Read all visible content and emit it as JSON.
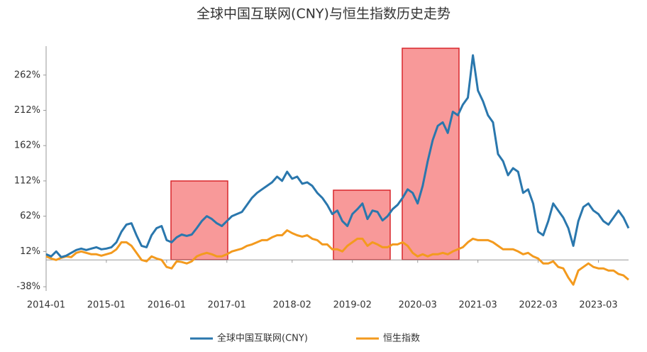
{
  "chart_data": {
    "type": "line",
    "title": "全球中国互联网(CNY)与恒生指数历史走势",
    "x": [
      "2014-01",
      "2014-02",
      "2014-03",
      "2014-04",
      "2014-05",
      "2014-06",
      "2014-07",
      "2014-08",
      "2014-09",
      "2014-10",
      "2014-11",
      "2014-12",
      "2015-01",
      "2015-02",
      "2015-03",
      "2015-04",
      "2015-05",
      "2015-06",
      "2015-07",
      "2015-08",
      "2015-09",
      "2015-10",
      "2015-11",
      "2015-12",
      "2016-01",
      "2016-02",
      "2016-03",
      "2016-04",
      "2016-05",
      "2016-06",
      "2016-07",
      "2016-08",
      "2016-09",
      "2016-10",
      "2016-11",
      "2016-12",
      "2017-01",
      "2017-02",
      "2017-03",
      "2017-04",
      "2017-05",
      "2017-06",
      "2017-07",
      "2017-08",
      "2017-09",
      "2017-10",
      "2017-11",
      "2017-12",
      "2018-01",
      "2018-02",
      "2018-03",
      "2018-04",
      "2018-05",
      "2018-06",
      "2018-07",
      "2018-08",
      "2018-09",
      "2018-10",
      "2018-11",
      "2018-12",
      "2019-01",
      "2019-02",
      "2019-03",
      "2019-04",
      "2019-05",
      "2019-06",
      "2019-07",
      "2019-08",
      "2019-09",
      "2019-10",
      "2019-11",
      "2019-12",
      "2020-01",
      "2020-02",
      "2020-03",
      "2020-04",
      "2020-05",
      "2020-06",
      "2020-07",
      "2020-08",
      "2020-09",
      "2020-10",
      "2020-11",
      "2020-12",
      "2021-01",
      "2021-02",
      "2021-03",
      "2021-04",
      "2021-05",
      "2021-06",
      "2021-07",
      "2021-08",
      "2021-09",
      "2021-10",
      "2021-11",
      "2021-12",
      "2022-01",
      "2022-02",
      "2022-03",
      "2022-04",
      "2022-05",
      "2022-06",
      "2022-07",
      "2022-08",
      "2022-09",
      "2022-10",
      "2022-11",
      "2022-12",
      "2023-01",
      "2023-02",
      "2023-03",
      "2023-04",
      "2023-05",
      "2023-06",
      "2023-07",
      "2023-08",
      "2023-09"
    ],
    "series": [
      {
        "name": "全球中国互联网(CNY)",
        "color": "#2a77ad",
        "values": [
          8,
          5,
          12,
          4,
          6,
          10,
          14,
          16,
          14,
          16,
          18,
          15,
          16,
          18,
          25,
          40,
          50,
          52,
          35,
          20,
          18,
          35,
          45,
          48,
          28,
          25,
          32,
          36,
          34,
          36,
          45,
          55,
          62,
          58,
          52,
          48,
          55,
          62,
          65,
          68,
          78,
          88,
          95,
          100,
          105,
          110,
          118,
          112,
          125,
          115,
          118,
          108,
          110,
          105,
          95,
          88,
          78,
          65,
          70,
          55,
          48,
          65,
          72,
          80,
          58,
          70,
          68,
          56,
          62,
          72,
          78,
          88,
          100,
          95,
          80,
          105,
          140,
          170,
          190,
          195,
          180,
          210,
          205,
          220,
          230,
          290,
          240,
          225,
          205,
          195,
          150,
          140,
          120,
          130,
          125,
          95,
          100,
          80,
          40,
          35,
          55,
          80,
          70,
          60,
          45,
          20,
          55,
          75,
          80,
          70,
          65,
          55,
          50,
          60,
          70,
          60,
          45
        ]
      },
      {
        "name": "恒生指数",
        "color": "#f39a1e",
        "values": [
          5,
          2,
          0,
          3,
          5,
          4,
          10,
          12,
          10,
          8,
          8,
          6,
          8,
          10,
          15,
          25,
          25,
          20,
          10,
          0,
          -2,
          5,
          2,
          0,
          -10,
          -12,
          -2,
          -3,
          -5,
          -2,
          5,
          8,
          10,
          8,
          5,
          5,
          8,
          12,
          14,
          16,
          20,
          22,
          25,
          28,
          28,
          32,
          35,
          35,
          42,
          38,
          35,
          33,
          35,
          30,
          28,
          22,
          22,
          15,
          15,
          12,
          20,
          25,
          30,
          30,
          20,
          25,
          22,
          18,
          18,
          22,
          22,
          25,
          20,
          10,
          5,
          8,
          5,
          8,
          8,
          10,
          8,
          12,
          15,
          18,
          25,
          30,
          28,
          28,
          28,
          25,
          20,
          15,
          15,
          15,
          12,
          8,
          10,
          5,
          2,
          -5,
          -5,
          -2,
          -10,
          -12,
          -25,
          -35,
          -15,
          -10,
          -5,
          -10,
          -12,
          -12,
          -15,
          -15,
          -20,
          -22,
          -28
        ]
      }
    ],
    "xticks": [
      "2014-01",
      "2015-01",
      "2016-01",
      "2017-01",
      "2018-02",
      "2019-02",
      "2020-03",
      "2021-03",
      "2022-03",
      "2023-03"
    ],
    "ylim": [
      -44,
      303
    ],
    "yticks": [
      {
        "value": -38,
        "label": "-38%"
      },
      {
        "value": 12,
        "label": "12%"
      },
      {
        "value": 62,
        "label": "62%"
      },
      {
        "value": 112,
        "label": "112%"
      },
      {
        "value": 162,
        "label": "162%"
      },
      {
        "value": 212,
        "label": "212%"
      },
      {
        "value": 262,
        "label": "262%"
      }
    ]
  }
}
